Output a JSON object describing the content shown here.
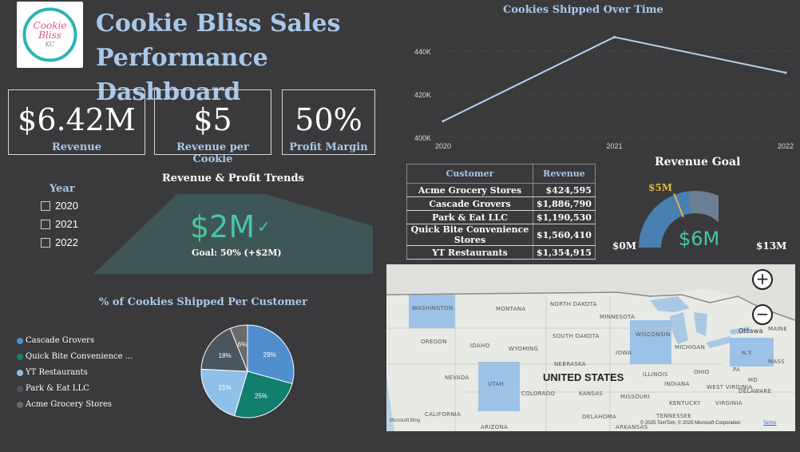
{
  "logo": {
    "line1": "Cookie",
    "line2": "Bliss",
    "line3": "KC"
  },
  "title": "Cookie Bliss Sales Performance Dashboard",
  "kpis": [
    {
      "value": "$6.42M",
      "label": "Revenue"
    },
    {
      "value": "$5",
      "label": "Revenue per Cookie"
    },
    {
      "value": "50%",
      "label": "Profit Margin"
    }
  ],
  "year_filter": {
    "title": "Year",
    "options": [
      "2020",
      "2021",
      "2022"
    ]
  },
  "trend": {
    "title": "Revenue & Profit Trends",
    "value": "$2M",
    "goal": "Goal: 50% (+$2M)"
  },
  "line_chart": {
    "title": "Cookies Shipped Over Time"
  },
  "table": {
    "headers": [
      "Customer",
      "Revenue"
    ],
    "rows": [
      [
        "Acme Grocery Stores",
        "$424,595"
      ],
      [
        "Cascade Grovers",
        "$1,886,790"
      ],
      [
        "Park & Eat LLC",
        "$1,190,530"
      ],
      [
        "Quick Bite Convenience Stores",
        "$1,560,410"
      ],
      [
        "YT Restaurants",
        "$1,354,915"
      ]
    ]
  },
  "gauge": {
    "title": "Revenue Goal",
    "min": "$0M",
    "max": "$13M",
    "target": "$5M",
    "value": "$6M",
    "value_fraction": 0.46,
    "target_fraction": 0.38
  },
  "pie": {
    "title": "% of Cookies Shipped Per Customer"
  },
  "map": {
    "country_label": "UNITED STATES",
    "copyright": "© 2025 TomTom, © 2025 Microsoft Corporation",
    "terms": "Terms",
    "brand": "Microsoft Bing",
    "states": [
      "WASHINGTON",
      "MONTANA",
      "NORTH DAKOTA",
      "MINNESOTA",
      "SOUTH DAKOTA",
      "WISCONSIN",
      "OREGON",
      "IDAHO",
      "WYOMING",
      "IOWA",
      "MICHIGAN",
      "NEBRASKA",
      "N.Y.",
      "NEVADA",
      "UTAH",
      "ILLINOIS",
      "OHIO",
      "PA",
      "INDIANA",
      "COLORADO",
      "KANSAS",
      "MISSOURI",
      "WEST VIRGINIA",
      "CALIFORNIA",
      "KENTUCKY",
      "VIRGINIA",
      "MD",
      "DELAWARE",
      "OKLAHOMA",
      "TENNESSEE",
      "ARKANSAS",
      "ARIZONA",
      "Ottawa",
      "MAINE",
      "MASS"
    ]
  },
  "chart_data": [
    {
      "type": "line",
      "title": "Cookies Shipped Over Time",
      "x": [
        "2020",
        "2021",
        "2022"
      ],
      "series": [
        {
          "values": [
            407500,
            446500,
            430000
          ]
        }
      ],
      "y_ticks": [
        "400K",
        "420K",
        "440K"
      ],
      "ylim": [
        400000,
        450000
      ],
      "grid": true
    },
    {
      "type": "pie",
      "title": "% of Cookies Shipped Per Customer",
      "categories": [
        "Cascade Grovers",
        "Quick Bite Convenience ...",
        "YT Restaurants",
        "Park & Eat LLC",
        "Acme Grocery Stores"
      ],
      "values": [
        29,
        25,
        21,
        18,
        6
      ],
      "labels": [
        "29%",
        "25%",
        "21%",
        "18%",
        "6%"
      ],
      "colors": [
        "#4f8fcf",
        "#117e6e",
        "#8fc0e8",
        "#4a5560",
        "#6a6a6a"
      ]
    }
  ]
}
